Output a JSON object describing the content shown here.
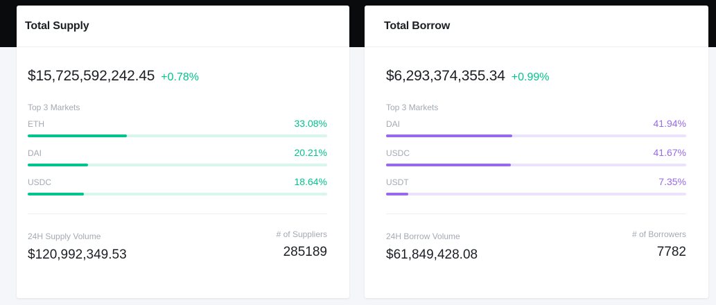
{
  "supply": {
    "title": "Total Supply",
    "total": "$15,725,592,242.45",
    "change": "+0.78%",
    "markets_title": "Top 3 Markets",
    "markets": [
      {
        "name": "ETH",
        "pct_label": "33.08%",
        "pct": 33.08
      },
      {
        "name": "DAI",
        "pct_label": "20.21%",
        "pct": 20.21
      },
      {
        "name": "USDC",
        "pct_label": "18.64%",
        "pct": 18.64
      }
    ],
    "volume_label": "24H Supply Volume",
    "volume": "$120,992,349.53",
    "count_label": "# of Suppliers",
    "count": "285189",
    "accent": "#00c48c"
  },
  "borrow": {
    "title": "Total Borrow",
    "total": "$6,293,374,355.34",
    "change": "+0.99%",
    "markets_title": "Top 3 Markets",
    "markets": [
      {
        "name": "DAI",
        "pct_label": "41.94%",
        "pct": 41.94
      },
      {
        "name": "USDC",
        "pct_label": "41.67%",
        "pct": 41.67
      },
      {
        "name": "USDT",
        "pct_label": "7.35%",
        "pct": 7.35
      }
    ],
    "volume_label": "24H Borrow Volume",
    "volume": "$61,849,428.08",
    "count_label": "# of Borrowers",
    "count": "7782",
    "accent": "#9669ed"
  }
}
